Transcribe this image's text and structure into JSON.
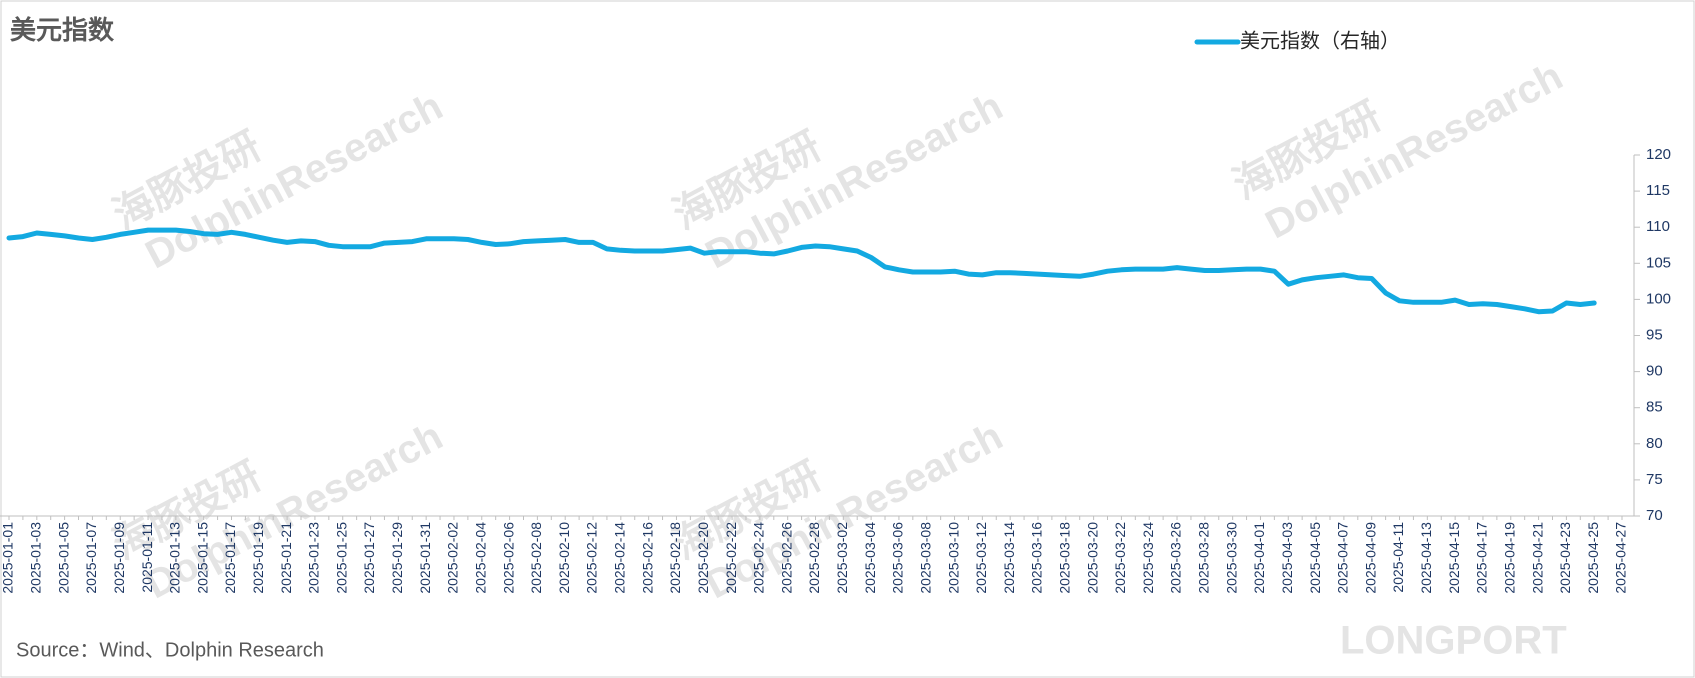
{
  "chart_data": {
    "type": "line",
    "title": "美元指数",
    "source": "Source：Wind、Dolphin Research",
    "watermarks": [
      "海豚投研",
      "DolphinResearch",
      "LONGPORT"
    ],
    "categories": [
      "2025-01-01",
      null,
      "2025-01-03",
      null,
      "2025-01-05",
      null,
      "2025-01-07",
      null,
      "2025-01-09",
      null,
      "2025-01-11",
      null,
      "2025-01-13",
      null,
      "2025-01-15",
      null,
      "2025-01-17",
      null,
      "2025-01-19",
      null,
      "2025-01-21",
      null,
      "2025-01-23",
      null,
      "2025-01-25",
      null,
      "2025-01-27",
      null,
      "2025-01-29",
      null,
      "2025-01-31",
      null,
      "2025-02-02",
      null,
      "2025-02-04",
      null,
      "2025-02-06",
      null,
      "2025-02-08",
      null,
      "2025-02-10",
      null,
      "2025-02-12",
      null,
      "2025-02-14",
      null,
      "2025-02-16",
      null,
      "2025-02-18",
      null,
      "2025-02-20",
      null,
      "2025-02-22",
      null,
      "2025-02-24",
      null,
      "2025-02-26",
      null,
      "2025-02-28",
      null,
      "2025-03-02",
      null,
      "2025-03-04",
      null,
      "2025-03-06",
      null,
      "2025-03-08",
      null,
      "2025-03-10",
      null,
      "2025-03-12",
      null,
      "2025-03-14",
      null,
      "2025-03-16",
      null,
      "2025-03-18",
      null,
      "2025-03-20",
      null,
      "2025-03-22",
      null,
      "2025-03-24",
      null,
      "2025-03-26",
      null,
      "2025-03-28",
      null,
      "2025-03-30",
      null,
      "2025-04-01",
      null,
      "2025-04-03",
      null,
      "2025-04-05",
      null,
      "2025-04-07",
      null,
      "2025-04-09",
      null,
      "2025-04-11",
      null,
      "2025-04-13",
      null,
      "2025-04-15",
      null,
      "2025-04-17",
      null,
      "2025-04-19",
      null,
      "2025-04-21",
      null,
      "2025-04-23",
      null,
      "2025-04-25",
      null,
      "2025-04-27"
    ],
    "series": [
      {
        "name": "美元指数（右轴）",
        "color": "#13a9e1",
        "axis": "y2",
        "values": [
          108.5,
          108.7,
          109.2,
          109.0,
          108.8,
          108.5,
          108.3,
          108.6,
          109.0,
          109.3,
          109.6,
          109.6,
          109.6,
          109.4,
          109.1,
          109.0,
          109.3,
          109.0,
          108.6,
          108.2,
          107.9,
          108.1,
          108.0,
          107.5,
          107.3,
          107.3,
          107.3,
          107.8,
          107.9,
          108.0,
          108.4,
          108.4,
          108.4,
          108.3,
          107.9,
          107.6,
          107.7,
          108.0,
          108.1,
          108.2,
          108.3,
          107.9,
          107.9,
          107.0,
          106.8,
          106.7,
          106.7,
          106.7,
          106.9,
          107.1,
          106.4,
          106.6,
          106.6,
          106.6,
          106.4,
          106.3,
          106.7,
          107.2,
          107.4,
          107.3,
          107.0,
          106.7,
          105.8,
          104.5,
          104.1,
          103.8,
          103.8,
          103.8,
          103.9,
          103.5,
          103.4,
          103.7,
          103.7,
          103.6,
          103.5,
          103.4,
          103.3,
          103.2,
          103.5,
          103.9,
          104.1,
          104.2,
          104.2,
          104.2,
          104.4,
          104.2,
          104.0,
          104.0,
          104.1,
          104.2,
          104.2,
          103.9,
          102.1,
          102.7,
          103.0,
          103.2,
          103.4,
          103.0,
          102.9,
          100.9,
          99.8,
          99.6,
          99.6,
          99.6,
          99.9,
          99.3,
          99.4,
          99.3,
          99.0,
          98.7,
          98.3,
          98.4,
          99.5,
          99.3,
          99.5,
          null,
          null
        ]
      }
    ],
    "y2lim": [
      70,
      120
    ],
    "y2ticks": [
      70,
      75,
      80,
      85,
      90,
      95,
      100,
      105,
      110,
      115,
      120
    ]
  }
}
